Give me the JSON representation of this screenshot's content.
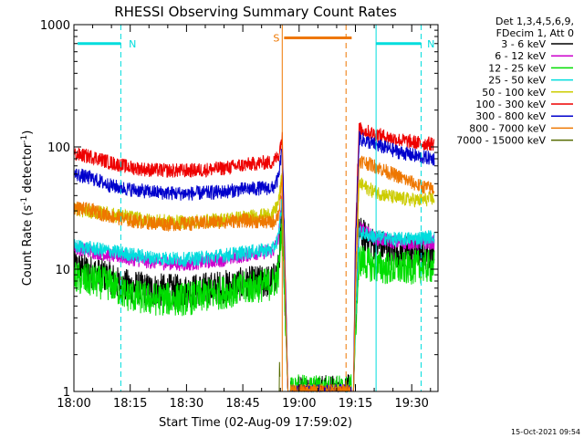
{
  "chart_data": {
    "type": "line",
    "title": "RHESSI Observing Summary Count Rates",
    "xlabel": "Start Time (02-Aug-09 17:59:02)",
    "ylabel_main": "Count Rate (s",
    "ylabel_sup1": "-1",
    "ylabel_mid": " detector",
    "ylabel_sup2": "-1",
    "ylabel_end": ")",
    "y_scale": "log",
    "ylim": [
      1,
      1000
    ],
    "xlim_minutes": [
      0,
      97
    ],
    "x_ticks": [
      {
        "t": 0,
        "label": "18:00"
      },
      {
        "t": 15,
        "label": "18:15"
      },
      {
        "t": 30,
        "label": "18:30"
      },
      {
        "t": 45,
        "label": "18:45"
      },
      {
        "t": 60,
        "label": "19:00"
      },
      {
        "t": 75,
        "label": "19:15"
      },
      {
        "t": 90,
        "label": "19:30"
      }
    ],
    "y_ticks": [
      {
        "v": 1,
        "label": "1"
      },
      {
        "v": 10,
        "label": "10"
      },
      {
        "v": 100,
        "label": "100"
      },
      {
        "v": 1000,
        "label": "1000"
      }
    ],
    "legend_header": [
      "Det 1,3,4,5,6,9,",
      "FDecim 1, Att 0"
    ],
    "series": [
      {
        "name": "3 - 6 keV",
        "color": "#000000",
        "points": [
          [
            0,
            10.5
          ],
          [
            10,
            8.5
          ],
          [
            12,
            7.5
          ],
          [
            20,
            6.8
          ],
          [
            30,
            6.6
          ],
          [
            40,
            7.2
          ],
          [
            48,
            7.8
          ],
          [
            53,
            8.0
          ],
          [
            54.5,
            10
          ],
          [
            55.5,
            30
          ],
          [
            57,
            1.0
          ],
          [
            74.5,
            1.0
          ],
          [
            75,
            3.5
          ],
          [
            76,
            20
          ],
          [
            80,
            16
          ],
          [
            86,
            14
          ],
          [
            92,
            13.5
          ],
          [
            96,
            13.5
          ]
        ]
      },
      {
        "name": "6 - 12 keV",
        "color": "#cc00cc",
        "points": [
          [
            0,
            15
          ],
          [
            10,
            13
          ],
          [
            20,
            11.5
          ],
          [
            30,
            11
          ],
          [
            40,
            12
          ],
          [
            48,
            13.5
          ],
          [
            53,
            14
          ],
          [
            54.5,
            18
          ],
          [
            55.5,
            40
          ],
          [
            57,
            1.0
          ],
          [
            74.5,
            1.0
          ],
          [
            75,
            5
          ],
          [
            76,
            22
          ],
          [
            80,
            18
          ],
          [
            86,
            16.5
          ],
          [
            92,
            16.5
          ],
          [
            96,
            16.5
          ]
        ]
      },
      {
        "name": "12 - 25 keV",
        "color": "#00dd00",
        "points": [
          [
            0,
            8.5
          ],
          [
            10,
            7.5
          ],
          [
            14,
            6.2
          ],
          [
            20,
            5.7
          ],
          [
            30,
            5.7
          ],
          [
            40,
            6.5
          ],
          [
            48,
            7.2
          ],
          [
            53,
            7.6
          ],
          [
            54.5,
            9
          ],
          [
            55.5,
            25
          ],
          [
            57,
            1.0
          ],
          [
            74.5,
            1.0
          ],
          [
            75,
            3.0
          ],
          [
            76,
            12
          ],
          [
            80,
            10.5
          ],
          [
            86,
            10
          ],
          [
            92,
            10.5
          ],
          [
            96,
            10.5
          ]
        ]
      },
      {
        "name": "25 - 50 keV",
        "color": "#00dddd",
        "points": [
          [
            0,
            15.5
          ],
          [
            10,
            14
          ],
          [
            20,
            12.5
          ],
          [
            30,
            12
          ],
          [
            40,
            13
          ],
          [
            48,
            14
          ],
          [
            53,
            14.5
          ],
          [
            54.5,
            18
          ],
          [
            55.5,
            40
          ],
          [
            57,
            1.0
          ],
          [
            74.5,
            1.0
          ],
          [
            75,
            4
          ],
          [
            76,
            20
          ],
          [
            80,
            18.5
          ],
          [
            86,
            17.5
          ],
          [
            92,
            18
          ],
          [
            96,
            18.5
          ]
        ]
      },
      {
        "name": "50 - 100 keV",
        "color": "#cccc00",
        "points": [
          [
            0,
            31
          ],
          [
            10,
            28
          ],
          [
            20,
            25
          ],
          [
            30,
            24
          ],
          [
            40,
            25.5
          ],
          [
            48,
            27
          ],
          [
            53,
            28
          ],
          [
            54.5,
            35
          ],
          [
            55.5,
            60
          ],
          [
            57,
            1.0
          ],
          [
            74.5,
            1.0
          ],
          [
            75,
            6
          ],
          [
            76,
            50
          ],
          [
            80,
            43
          ],
          [
            86,
            38
          ],
          [
            92,
            36.5
          ],
          [
            96,
            38
          ]
        ]
      },
      {
        "name": "100 - 300 keV",
        "color": "#ee0000",
        "points": [
          [
            0,
            87
          ],
          [
            5,
            83
          ],
          [
            10,
            74
          ],
          [
            15,
            68
          ],
          [
            20,
            65
          ],
          [
            25,
            64
          ],
          [
            30,
            64
          ],
          [
            35,
            65
          ],
          [
            40,
            67
          ],
          [
            45,
            71
          ],
          [
            50,
            74
          ],
          [
            53,
            75
          ],
          [
            54.5,
            85
          ],
          [
            55.5,
            125
          ],
          [
            57,
            1.0
          ],
          [
            74.5,
            1.0
          ],
          [
            75,
            20
          ],
          [
            76,
            140
          ],
          [
            80,
            128
          ],
          [
            86,
            115
          ],
          [
            92,
            107
          ],
          [
            96,
            106
          ]
        ]
      },
      {
        "name": "300 - 800 keV",
        "color": "#0000cc",
        "points": [
          [
            0,
            60
          ],
          [
            5,
            55
          ],
          [
            10,
            48
          ],
          [
            15,
            45
          ],
          [
            20,
            43
          ],
          [
            25,
            42
          ],
          [
            30,
            41.5
          ],
          [
            35,
            42
          ],
          [
            40,
            43
          ],
          [
            45,
            45
          ],
          [
            50,
            46
          ],
          [
            53,
            46
          ],
          [
            54.5,
            55
          ],
          [
            55.5,
            100
          ],
          [
            57,
            1.0
          ],
          [
            74.5,
            1.0
          ],
          [
            75,
            15
          ],
          [
            76,
            118
          ],
          [
            80,
            105
          ],
          [
            86,
            92
          ],
          [
            92,
            83
          ],
          [
            96,
            80
          ]
        ]
      },
      {
        "name": "800 - 7000 keV",
        "color": "#ee7700",
        "points": [
          [
            0,
            32
          ],
          [
            5,
            30
          ],
          [
            10,
            27
          ],
          [
            15,
            25
          ],
          [
            20,
            24
          ],
          [
            25,
            23.5
          ],
          [
            30,
            23.5
          ],
          [
            35,
            24
          ],
          [
            40,
            24.5
          ],
          [
            45,
            25
          ],
          [
            50,
            24.5
          ],
          [
            53,
            24
          ],
          [
            54.5,
            28
          ],
          [
            55.5,
            50
          ],
          [
            57,
            1.0
          ],
          [
            74.5,
            1.0
          ],
          [
            75,
            8
          ],
          [
            76,
            78
          ],
          [
            80,
            70
          ],
          [
            86,
            58
          ],
          [
            92,
            48
          ],
          [
            96,
            45
          ]
        ]
      },
      {
        "name": "7000 - 15000 keV",
        "color": "#556b00",
        "points": [
          [
            54.7,
            1.0
          ],
          [
            54.8,
            2.0
          ],
          [
            54.9,
            1.0
          ]
        ]
      }
    ],
    "flags": [
      {
        "label": "N",
        "color": "#00dddd",
        "bar": [
          1,
          12.5
        ],
        "y": 700,
        "lines_solid": [
          0
        ],
        "lines_dashed": [
          12.5
        ]
      },
      {
        "label": "N",
        "color": "#00dddd",
        "bar": [
          80.5,
          92.5
        ],
        "y": 700,
        "lines_solid": [
          80.5
        ],
        "lines_dashed": [
          92.5
        ]
      },
      {
        "label": "S",
        "color": "#ee7700",
        "bar": [
          56,
          74
        ],
        "y": 780,
        "lines_solid": [
          55.5
        ],
        "lines_dashed": [
          72.5
        ]
      }
    ]
  },
  "timestamp": "15-Oct-2021 09:54"
}
